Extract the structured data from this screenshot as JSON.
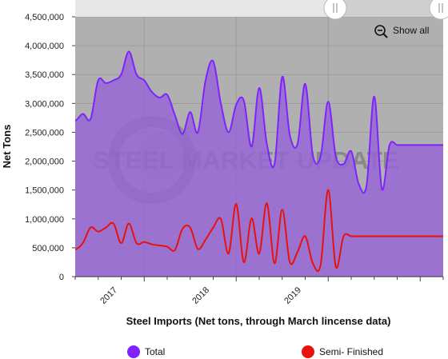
{
  "chart_data": {
    "type": "area",
    "title": "",
    "xlabel": "Steel Imports (Net tons, through March lincense data)",
    "ylabel": "Net Tons",
    "ylim": [
      0,
      4500000
    ],
    "yticks": [
      0,
      500000,
      1000000,
      1500000,
      2000000,
      2500000,
      3000000,
      3500000,
      4000000,
      4500000
    ],
    "ytick_labels": [
      "0",
      "500,000",
      "1,000,000",
      "1,500,000",
      "2,000,000",
      "2,500,000",
      "3,000,000",
      "3,500,000",
      "4,000,000",
      "4,500,000"
    ],
    "x_range": [
      2016.25,
      2020.25
    ],
    "x_ticks": [
      {
        "label": "2017",
        "value": 2017.0
      },
      {
        "label": "2018",
        "value": 2018.0
      },
      {
        "label": "2019",
        "value": 2019.0
      }
    ],
    "grid": true,
    "legend_position": "bottom",
    "series": [
      {
        "name": "Total",
        "color": "#7f22fe",
        "x": [
          2016.0,
          2016.083,
          2016.167,
          2016.25,
          2016.333,
          2016.417,
          2016.5,
          2016.583,
          2016.667,
          2016.75,
          2016.833,
          2016.917,
          2017.0,
          2017.083,
          2017.167,
          2017.25,
          2017.333,
          2017.417,
          2017.5,
          2017.583,
          2017.667,
          2017.75,
          2017.833,
          2017.917,
          2018.0,
          2018.083,
          2018.167,
          2018.25,
          2018.333,
          2018.417,
          2018.5,
          2018.583,
          2018.667,
          2018.75,
          2018.833,
          2018.917,
          2019.0,
          2019.083,
          2019.167,
          2019.25,
          2019.333,
          2019.417,
          2019.5,
          2019.583,
          2019.667,
          2019.75,
          2019.833,
          2019.917,
          2020.0,
          2020.083,
          2020.167,
          2020.25
        ],
        "values": [
          2850000,
          2800000,
          2750000,
          2700000,
          2820000,
          2730000,
          3400000,
          3350000,
          3400000,
          3500000,
          3900000,
          3500000,
          3400000,
          3200000,
          3100000,
          3150000,
          2800000,
          2470000,
          2850000,
          2500000,
          3400000,
          3730000,
          3000000,
          2500000,
          2980000,
          3050000,
          2250000,
          3270000,
          2300000,
          1950000,
          3460000,
          2450000,
          2300000,
          3340000,
          2100000,
          2080000,
          3030000,
          2080000,
          1950000,
          2170000,
          1600000,
          1580000,
          3120000,
          1520000,
          2280000,
          2280000,
          2280000,
          2280000,
          2280000,
          2280000,
          2280000,
          2280000
        ]
      },
      {
        "name": "Semi- Finished",
        "color": "#e8110e",
        "x": [
          2016.0,
          2016.083,
          2016.167,
          2016.25,
          2016.333,
          2016.417,
          2016.5,
          2016.583,
          2016.667,
          2016.75,
          2016.833,
          2016.917,
          2017.0,
          2017.083,
          2017.167,
          2017.25,
          2017.333,
          2017.417,
          2017.5,
          2017.583,
          2017.667,
          2017.75,
          2017.833,
          2017.917,
          2018.0,
          2018.083,
          2018.167,
          2018.25,
          2018.333,
          2018.417,
          2018.5,
          2018.583,
          2018.667,
          2018.75,
          2018.833,
          2018.917,
          2019.0,
          2019.083,
          2019.167,
          2019.25,
          2019.333,
          2019.417,
          2019.5,
          2019.583,
          2019.667,
          2019.75,
          2019.833,
          2019.917,
          2020.0,
          2020.083,
          2020.167,
          2020.25
        ],
        "values": [
          500000,
          450000,
          480000,
          470000,
          580000,
          850000,
          780000,
          850000,
          920000,
          580000,
          920000,
          580000,
          600000,
          560000,
          540000,
          520000,
          460000,
          830000,
          850000,
          480000,
          640000,
          850000,
          1000000,
          400000,
          1260000,
          250000,
          1010000,
          400000,
          1270000,
          230000,
          1160000,
          250000,
          430000,
          700000,
          230000,
          200000,
          1500000,
          170000,
          700000,
          700000,
          700000,
          700000,
          700000,
          700000,
          700000,
          700000,
          700000,
          700000,
          700000,
          700000,
          700000,
          700000
        ]
      }
    ]
  },
  "watermark": {
    "text": "STEEL MARKET UPDATE"
  },
  "controls": {
    "show_all_label": "Show all"
  },
  "legend": {
    "items": [
      {
        "label": "Total",
        "color": "#7f22fe"
      },
      {
        "label": "Semi- Finished",
        "color": "#e8110e"
      }
    ]
  }
}
